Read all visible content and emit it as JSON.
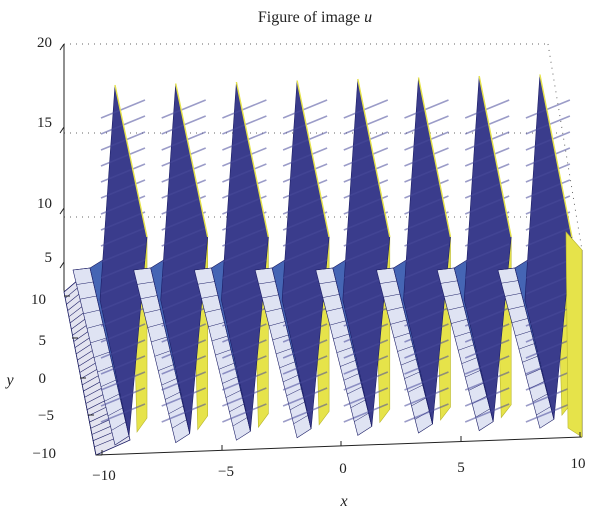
{
  "chart_data": {
    "type": "surface",
    "title": "Figure of image",
    "title_var": "u",
    "xlabel": "x",
    "ylabel": "y",
    "xlim": [
      -10,
      10
    ],
    "ylim": [
      -10,
      10
    ],
    "zlim": [
      5,
      20
    ],
    "x_ticks": [
      "−10",
      "−5",
      "0",
      "5",
      "10"
    ],
    "y_ticks": [
      "−10",
      "−5",
      "0",
      "5",
      "10"
    ],
    "z_ticks": [
      "5",
      "10",
      "15",
      "20"
    ],
    "grid": true,
    "colors": {
      "dark": "#3a3c8c",
      "mid": "#4565b4",
      "yellow": "#e6e34a",
      "edge": "#1c1e66"
    }
  }
}
